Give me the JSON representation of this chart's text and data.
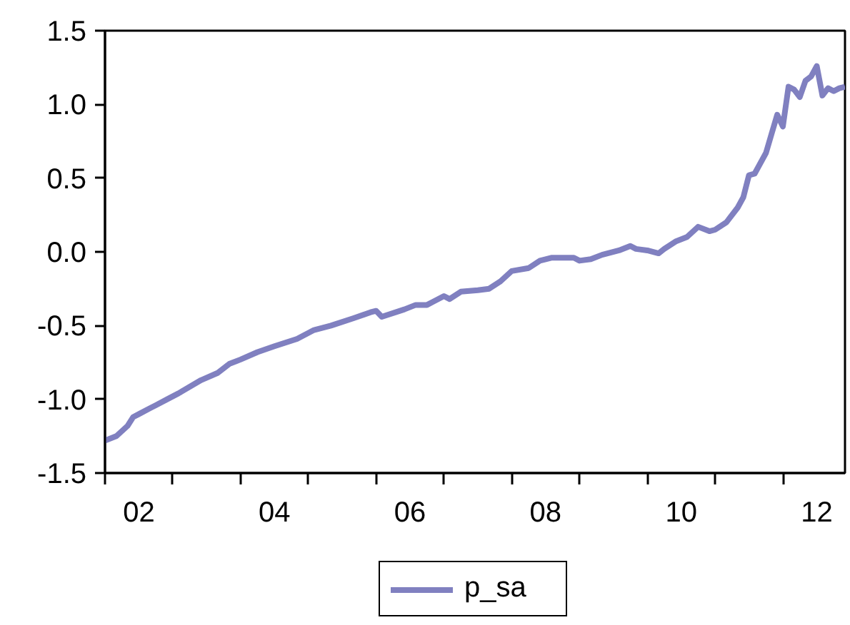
{
  "chart_data": {
    "type": "line",
    "x": [
      "2002-01",
      "2002-03",
      "2002-05",
      "2002-06",
      "2002-07",
      "2002-09",
      "2002-10",
      "2002-12",
      "2003-02",
      "2003-06",
      "2003-09",
      "2003-11",
      "2004-01",
      "2004-04",
      "2004-07",
      "2004-11",
      "2005-02",
      "2005-05",
      "2005-09",
      "2005-12",
      "2006-01",
      "2006-02",
      "2006-06",
      "2006-08",
      "2006-10",
      "2006-11",
      "2007-01",
      "2007-02",
      "2007-04",
      "2007-07",
      "2007-09",
      "2007-11",
      "2008-01",
      "2008-04",
      "2008-06",
      "2008-08",
      "2008-10",
      "2008-12",
      "2009-01",
      "2009-03",
      "2009-05",
      "2009-08",
      "2009-10",
      "2009-11",
      "2010-01",
      "2010-03",
      "2010-04",
      "2010-06",
      "2010-08",
      "2010-10",
      "2010-12",
      "2011-01",
      "2011-03",
      "2011-05",
      "2011-06",
      "2011-07",
      "2011-08",
      "2011-10",
      "2011-11",
      "2011-12",
      "2012-01",
      "2012-02",
      "2012-03",
      "2012-04",
      "2012-05",
      "2012-06",
      "2012-07",
      "2012-08",
      "2012-09",
      "2012-10",
      "2012-11",
      "2012-12"
    ],
    "series": [
      {
        "name": "p_sa",
        "color": "#8080c0",
        "values": [
          -1.28,
          -1.25,
          -1.18,
          -1.12,
          -1.1,
          -1.06,
          -1.04,
          -1.0,
          -0.96,
          -0.87,
          -0.82,
          -0.76,
          -0.73,
          -0.68,
          -0.64,
          -0.59,
          -0.53,
          -0.5,
          -0.45,
          -0.41,
          -0.4,
          -0.44,
          -0.39,
          -0.36,
          -0.36,
          -0.34,
          -0.3,
          -0.32,
          -0.27,
          -0.26,
          -0.25,
          -0.2,
          -0.13,
          -0.11,
          -0.06,
          -0.04,
          -0.04,
          -0.04,
          -0.06,
          -0.05,
          -0.02,
          0.01,
          0.04,
          0.02,
          0.01,
          -0.01,
          0.02,
          0.07,
          0.1,
          0.17,
          0.14,
          0.15,
          0.2,
          0.3,
          0.37,
          0.52,
          0.53,
          0.67,
          0.8,
          0.93,
          0.85,
          1.12,
          1.1,
          1.05,
          1.16,
          1.19,
          1.26,
          1.06,
          1.11,
          1.09,
          1.11,
          1.12
        ]
      }
    ],
    "xlim": [
      "2002-01",
      "2012-12"
    ],
    "xticks": [
      {
        "value": "2002-01",
        "label": null
      },
      {
        "value": "2002-07",
        "label": "02"
      },
      {
        "value": "2003-01",
        "label": null
      },
      {
        "value": "2004-01",
        "label": null
      },
      {
        "value": "2004-07",
        "label": "04"
      },
      {
        "value": "2005-01",
        "label": null
      },
      {
        "value": "2006-01",
        "label": null
      },
      {
        "value": "2006-07",
        "label": "06"
      },
      {
        "value": "2007-01",
        "label": null
      },
      {
        "value": "2008-01",
        "label": null
      },
      {
        "value": "2008-07",
        "label": "08"
      },
      {
        "value": "2009-01",
        "label": null
      },
      {
        "value": "2010-01",
        "label": null
      },
      {
        "value": "2010-07",
        "label": "10"
      },
      {
        "value": "2011-01",
        "label": null
      },
      {
        "value": "2012-01",
        "label": null
      },
      {
        "value": "2012-07",
        "label": "12"
      }
    ],
    "ylim": [
      -1.5,
      1.5
    ],
    "yticks": [
      -1.5,
      {
        "value": -1.0,
        "label": "-1.0"
      },
      -0.5,
      {
        "value": 0.0,
        "label": "0.0"
      },
      0.5,
      {
        "value": 1.0,
        "label": "1.0"
      },
      1.5
    ],
    "legend": "bottom",
    "line_style": "solid"
  }
}
